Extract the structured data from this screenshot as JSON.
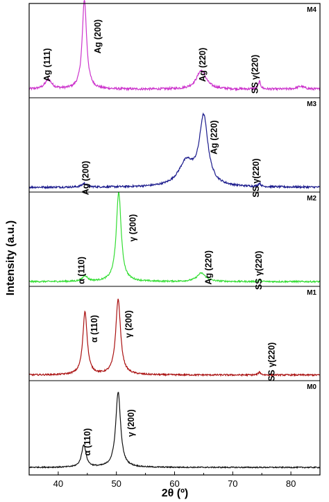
{
  "chart_data": {
    "type": "line",
    "xlabel": "2θ (º)",
    "ylabel": "Intensity (a.u.)",
    "xlim": [
      35,
      85
    ],
    "xticks": [
      40,
      50,
      60,
      70,
      80
    ],
    "grid": false,
    "legend": "none",
    "panels": [
      {
        "name": "M4",
        "color": "#cc33cc",
        "baseline": 0.09,
        "noise": 0.012,
        "peaks": [
          {
            "x": 38.3,
            "h": 0.1,
            "w": 0.7
          },
          {
            "x": 44.5,
            "h": 0.95,
            "w": 0.45
          },
          {
            "x": 64.6,
            "h": 0.2,
            "w": 1.0
          },
          {
            "x": 74.6,
            "h": 0.08,
            "w": 0.25
          },
          {
            "x": 81.7,
            "h": 0.03,
            "w": 0.8
          }
        ],
        "annotations": [
          {
            "text": "Ag (111)",
            "x": 38.6,
            "y": 0.35
          },
          {
            "text": "Ag (200)",
            "x": 47.3,
            "y": 0.65
          },
          {
            "text": "Ag (220)",
            "x": 65.3,
            "y": 0.35
          },
          {
            "text": "SS γ(220)",
            "x": 74.3,
            "y": 0.25
          }
        ]
      },
      {
        "name": "M3",
        "color": "#1a1a8c",
        "baseline": 0.05,
        "noise": 0.01,
        "peaks": [
          {
            "x": 44.5,
            "h": 0.04,
            "w": 0.5
          },
          {
            "x": 62.0,
            "h": 0.25,
            "w": 1.6
          },
          {
            "x": 65.0,
            "h": 0.72,
            "w": 0.9
          },
          {
            "x": 74.6,
            "h": 0.035,
            "w": 0.25
          }
        ],
        "annotations": [
          {
            "text": "Ag (200)",
            "x": 45.2,
            "y": 0.15
          },
          {
            "text": "Ag (220)",
            "x": 67.3,
            "y": 0.58
          },
          {
            "text": "SS γ(220)",
            "x": 74.5,
            "y": 0.15
          }
        ]
      },
      {
        "name": "M2",
        "color": "#33dd33",
        "baseline": 0.05,
        "noise": 0.008,
        "peaks": [
          {
            "x": 44.6,
            "h": 0.06,
            "w": 0.5
          },
          {
            "x": 50.4,
            "h": 0.95,
            "w": 0.5
          },
          {
            "x": 64.6,
            "h": 0.09,
            "w": 0.9
          },
          {
            "x": 74.6,
            "h": 0.015,
            "w": 0.25
          }
        ],
        "annotations": [
          {
            "text": "α (110)",
            "x": 44.5,
            "y": 0.17
          },
          {
            "text": "γ (200)",
            "x": 53.3,
            "y": 0.62
          },
          {
            "text": "Ag (220)",
            "x": 66.3,
            "y": 0.2
          },
          {
            "text": "SS γ(220)",
            "x": 75.0,
            "y": 0.17
          }
        ]
      },
      {
        "name": "M1",
        "color": "#aa1111",
        "baseline": 0.06,
        "noise": 0.008,
        "peaks": [
          {
            "x": 44.6,
            "h": 0.67,
            "w": 0.45
          },
          {
            "x": 50.3,
            "h": 0.8,
            "w": 0.5
          },
          {
            "x": 74.6,
            "h": 0.03,
            "w": 0.25
          }
        ],
        "annotations": [
          {
            "text": "α (110)",
            "x": 46.7,
            "y": 0.55
          },
          {
            "text": "γ (200)",
            "x": 52.6,
            "y": 0.6
          },
          {
            "text": "SS γ(220)",
            "x": 77.2,
            "y": 0.2
          }
        ]
      },
      {
        "name": "M0",
        "color": "#111111",
        "baseline": 0.08,
        "noise": 0.006,
        "peaks": [
          {
            "x": 44.4,
            "h": 0.24,
            "w": 0.45
          },
          {
            "x": 50.3,
            "h": 0.8,
            "w": 0.5
          }
        ],
        "annotations": [
          {
            "text": "α (110)",
            "x": 45.5,
            "y": 0.35
          },
          {
            "text": "γ (200)",
            "x": 53.0,
            "y": 0.55
          }
        ]
      }
    ]
  }
}
